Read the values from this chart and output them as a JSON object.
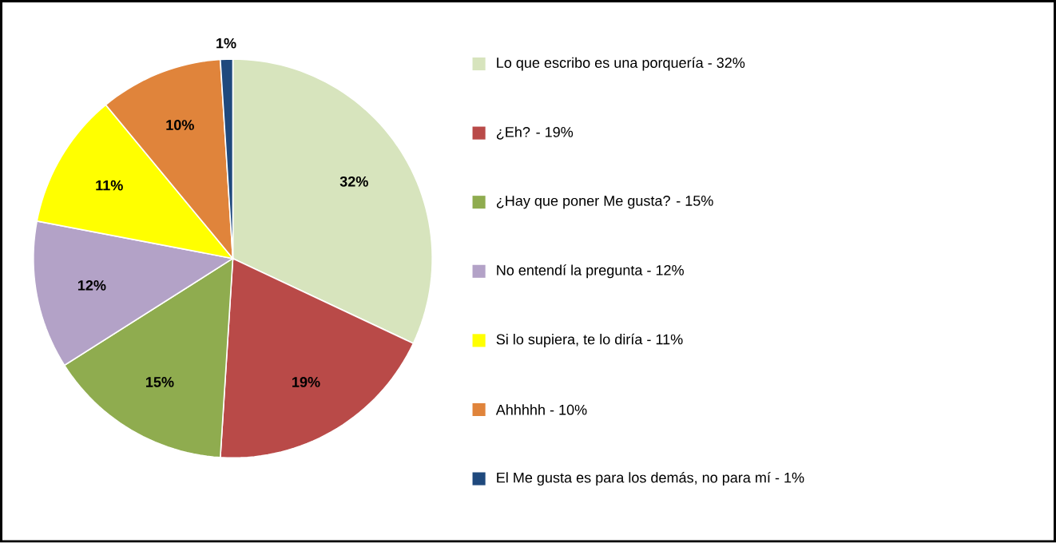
{
  "chart_data": {
    "type": "pie",
    "categories": [
      "Lo que escribo es una porquería - 32%",
      "¿Eh? - 19%",
      "¿Hay que poner Me gusta? - 15%",
      "No entendí la pregunta - 12%",
      "Si lo supiera, te lo diría - 11%",
      "Ahhhhh - 10%",
      "El Me gusta es para los demás, no para mí - 1%"
    ],
    "values": [
      32,
      19,
      15,
      12,
      11,
      10,
      1
    ],
    "value_labels": [
      "32%",
      "19%",
      "15%",
      "12%",
      "11%",
      "10%",
      "1%"
    ],
    "colors": [
      "#d7e4bd",
      "#b94a48",
      "#8fac4f",
      "#b3a2c7",
      "#ffff00",
      "#e0843b",
      "#1f497d"
    ],
    "legend": "right"
  }
}
